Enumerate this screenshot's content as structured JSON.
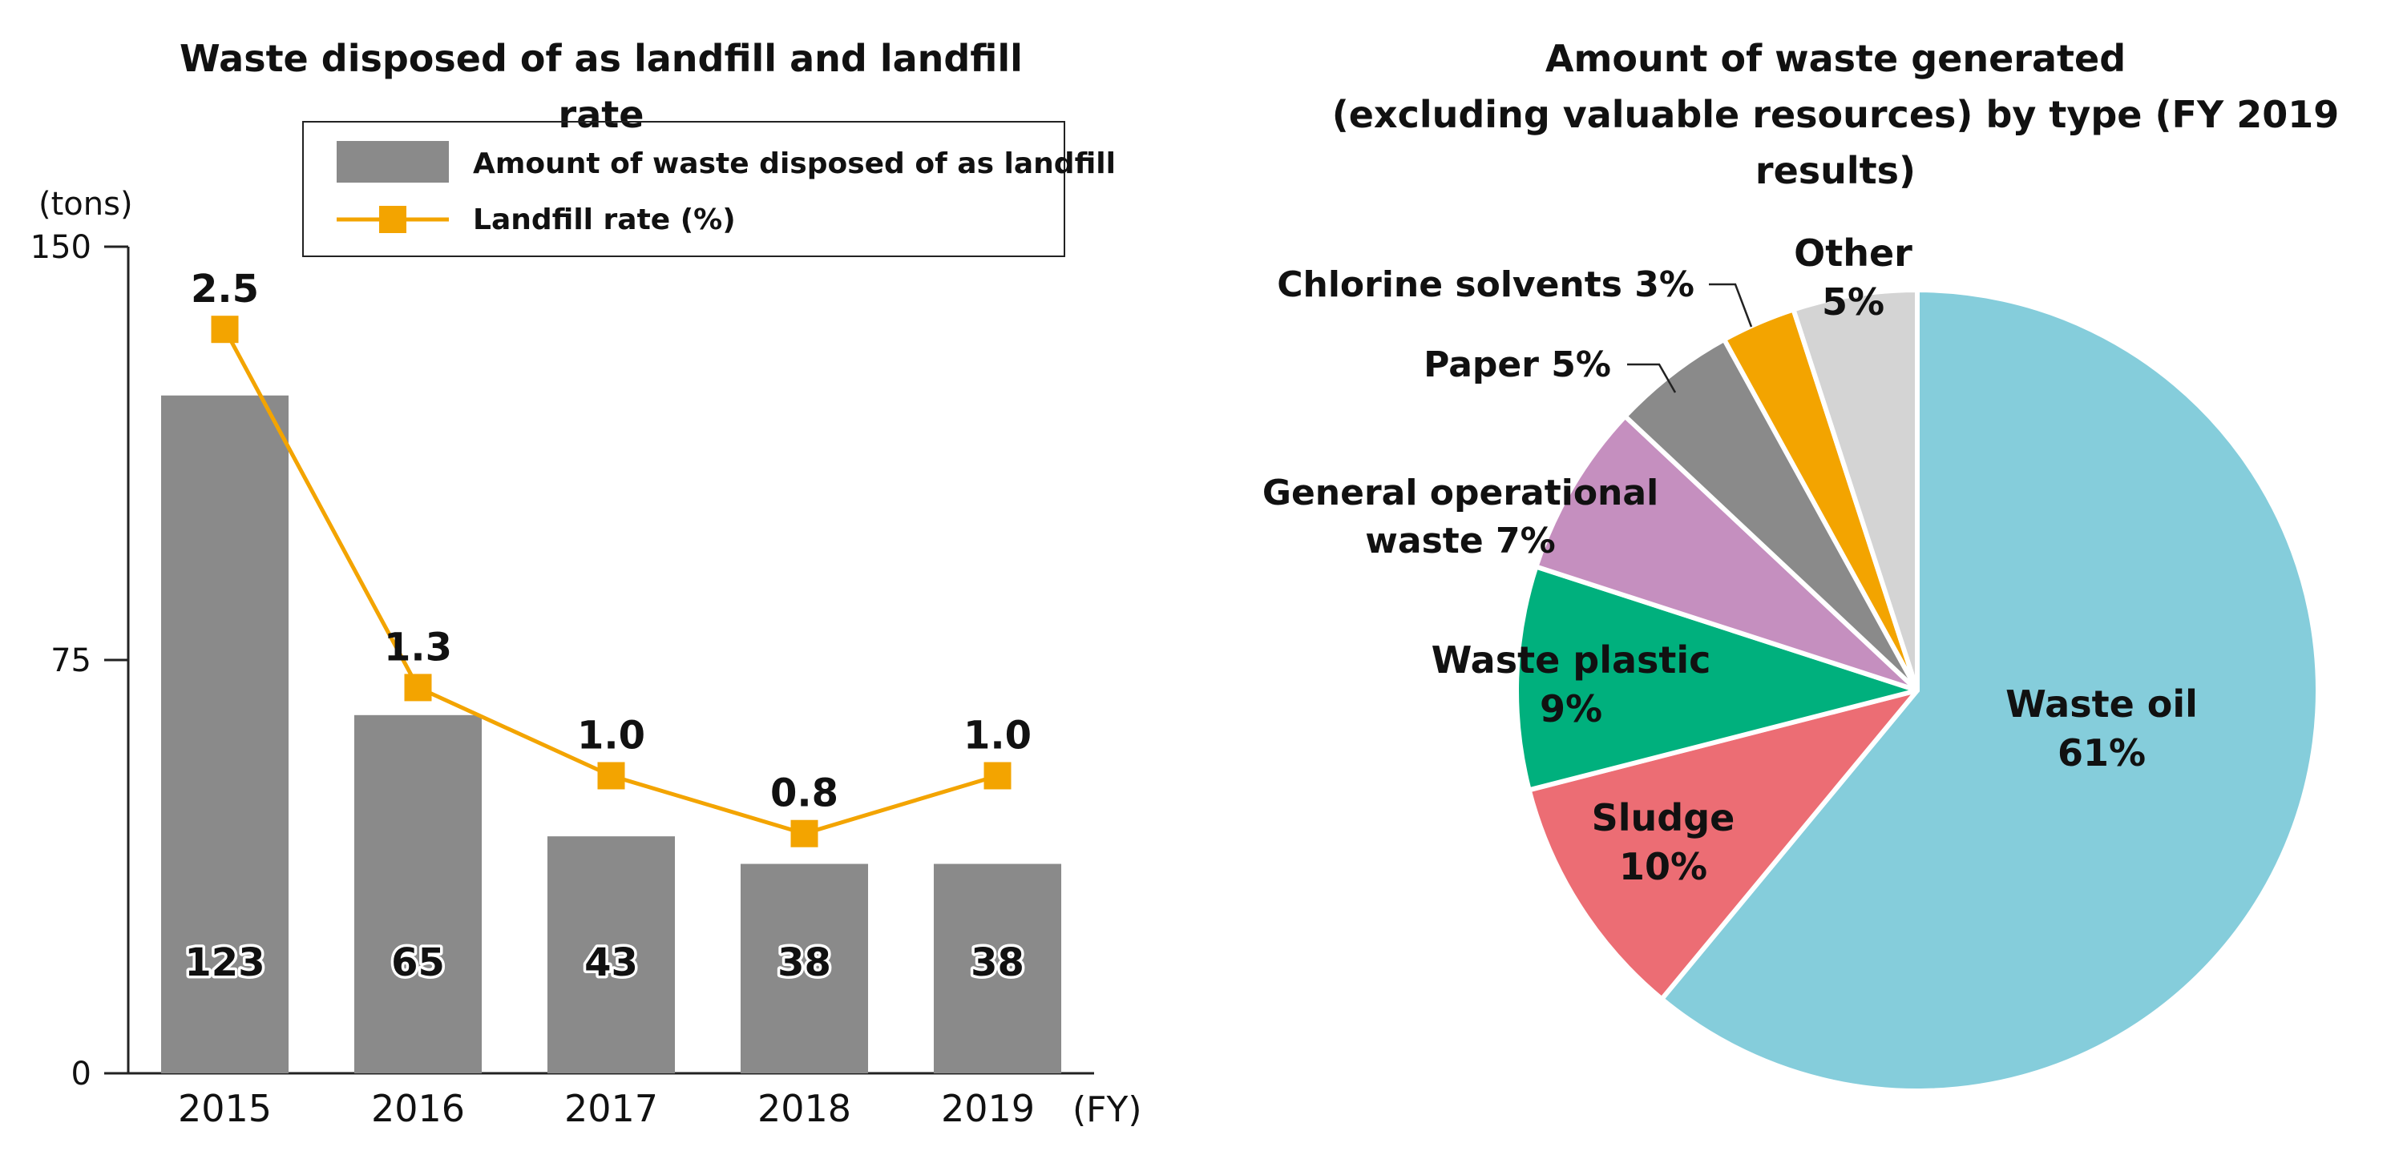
{
  "colors": {
    "bar": "#8a8a8a",
    "line": "#f3a400",
    "axis": "#222222",
    "text": "#111111"
  },
  "chart_data": [
    {
      "type": "bar",
      "title": "Waste disposed of as landfill and landfill rate",
      "categories": [
        "2015",
        "2016",
        "2017",
        "2018",
        "2019"
      ],
      "x_unit": "(FY)",
      "ylabel": "(tons)",
      "ylim": [
        0,
        150
      ],
      "yticks": [
        "0",
        "75",
        "150"
      ],
      "legend_position": "top-right",
      "series": [
        {
          "name": "Amount of waste disposed of as landfill",
          "type": "bar",
          "values": [
            123,
            65,
            43,
            38,
            38
          ],
          "labels": [
            "123",
            "65",
            "43",
            "38",
            "38"
          ]
        },
        {
          "name": "Landfill rate (%)",
          "type": "line",
          "values": [
            2.5,
            1.3,
            1.0,
            0.8,
            1.0
          ],
          "labels": [
            "2.5",
            "1.3",
            "1.0",
            "0.8",
            "1.0"
          ],
          "plotted_on_ton_scale": [
            135,
            70,
            54,
            43.5,
            54
          ]
        }
      ]
    },
    {
      "type": "pie",
      "title_lines": [
        "Amount of waste generated",
        "(excluding valuable resources) by type (FY 2019 results)"
      ],
      "slices": [
        {
          "name": "Waste oil",
          "value": 61,
          "pct_label": "61%",
          "color": "#85cddb"
        },
        {
          "name": "Sludge",
          "value": 10,
          "pct_label": "10%",
          "color": "#ec6d74"
        },
        {
          "name": "Waste plastic",
          "value": 9,
          "pct_label": "9%",
          "color": "#00b07d"
        },
        {
          "name": "General operational waste",
          "value": 7,
          "pct_label": "7%",
          "color": "#c58fbf",
          "label_lines": [
            "General operational",
            "waste  7%"
          ]
        },
        {
          "name": "Paper",
          "value": 5,
          "pct_label": "5%",
          "color": "#8a8a8a",
          "label_lines": [
            "Paper  5%"
          ]
        },
        {
          "name": "Chlorine solvents",
          "value": 3,
          "pct_label": "3%",
          "color": "#f3a400",
          "label_lines": [
            "Chlorine solvents  3%"
          ]
        },
        {
          "name": "Other",
          "value": 5,
          "pct_label": "5%",
          "color": "#d4d4d4"
        }
      ]
    }
  ]
}
